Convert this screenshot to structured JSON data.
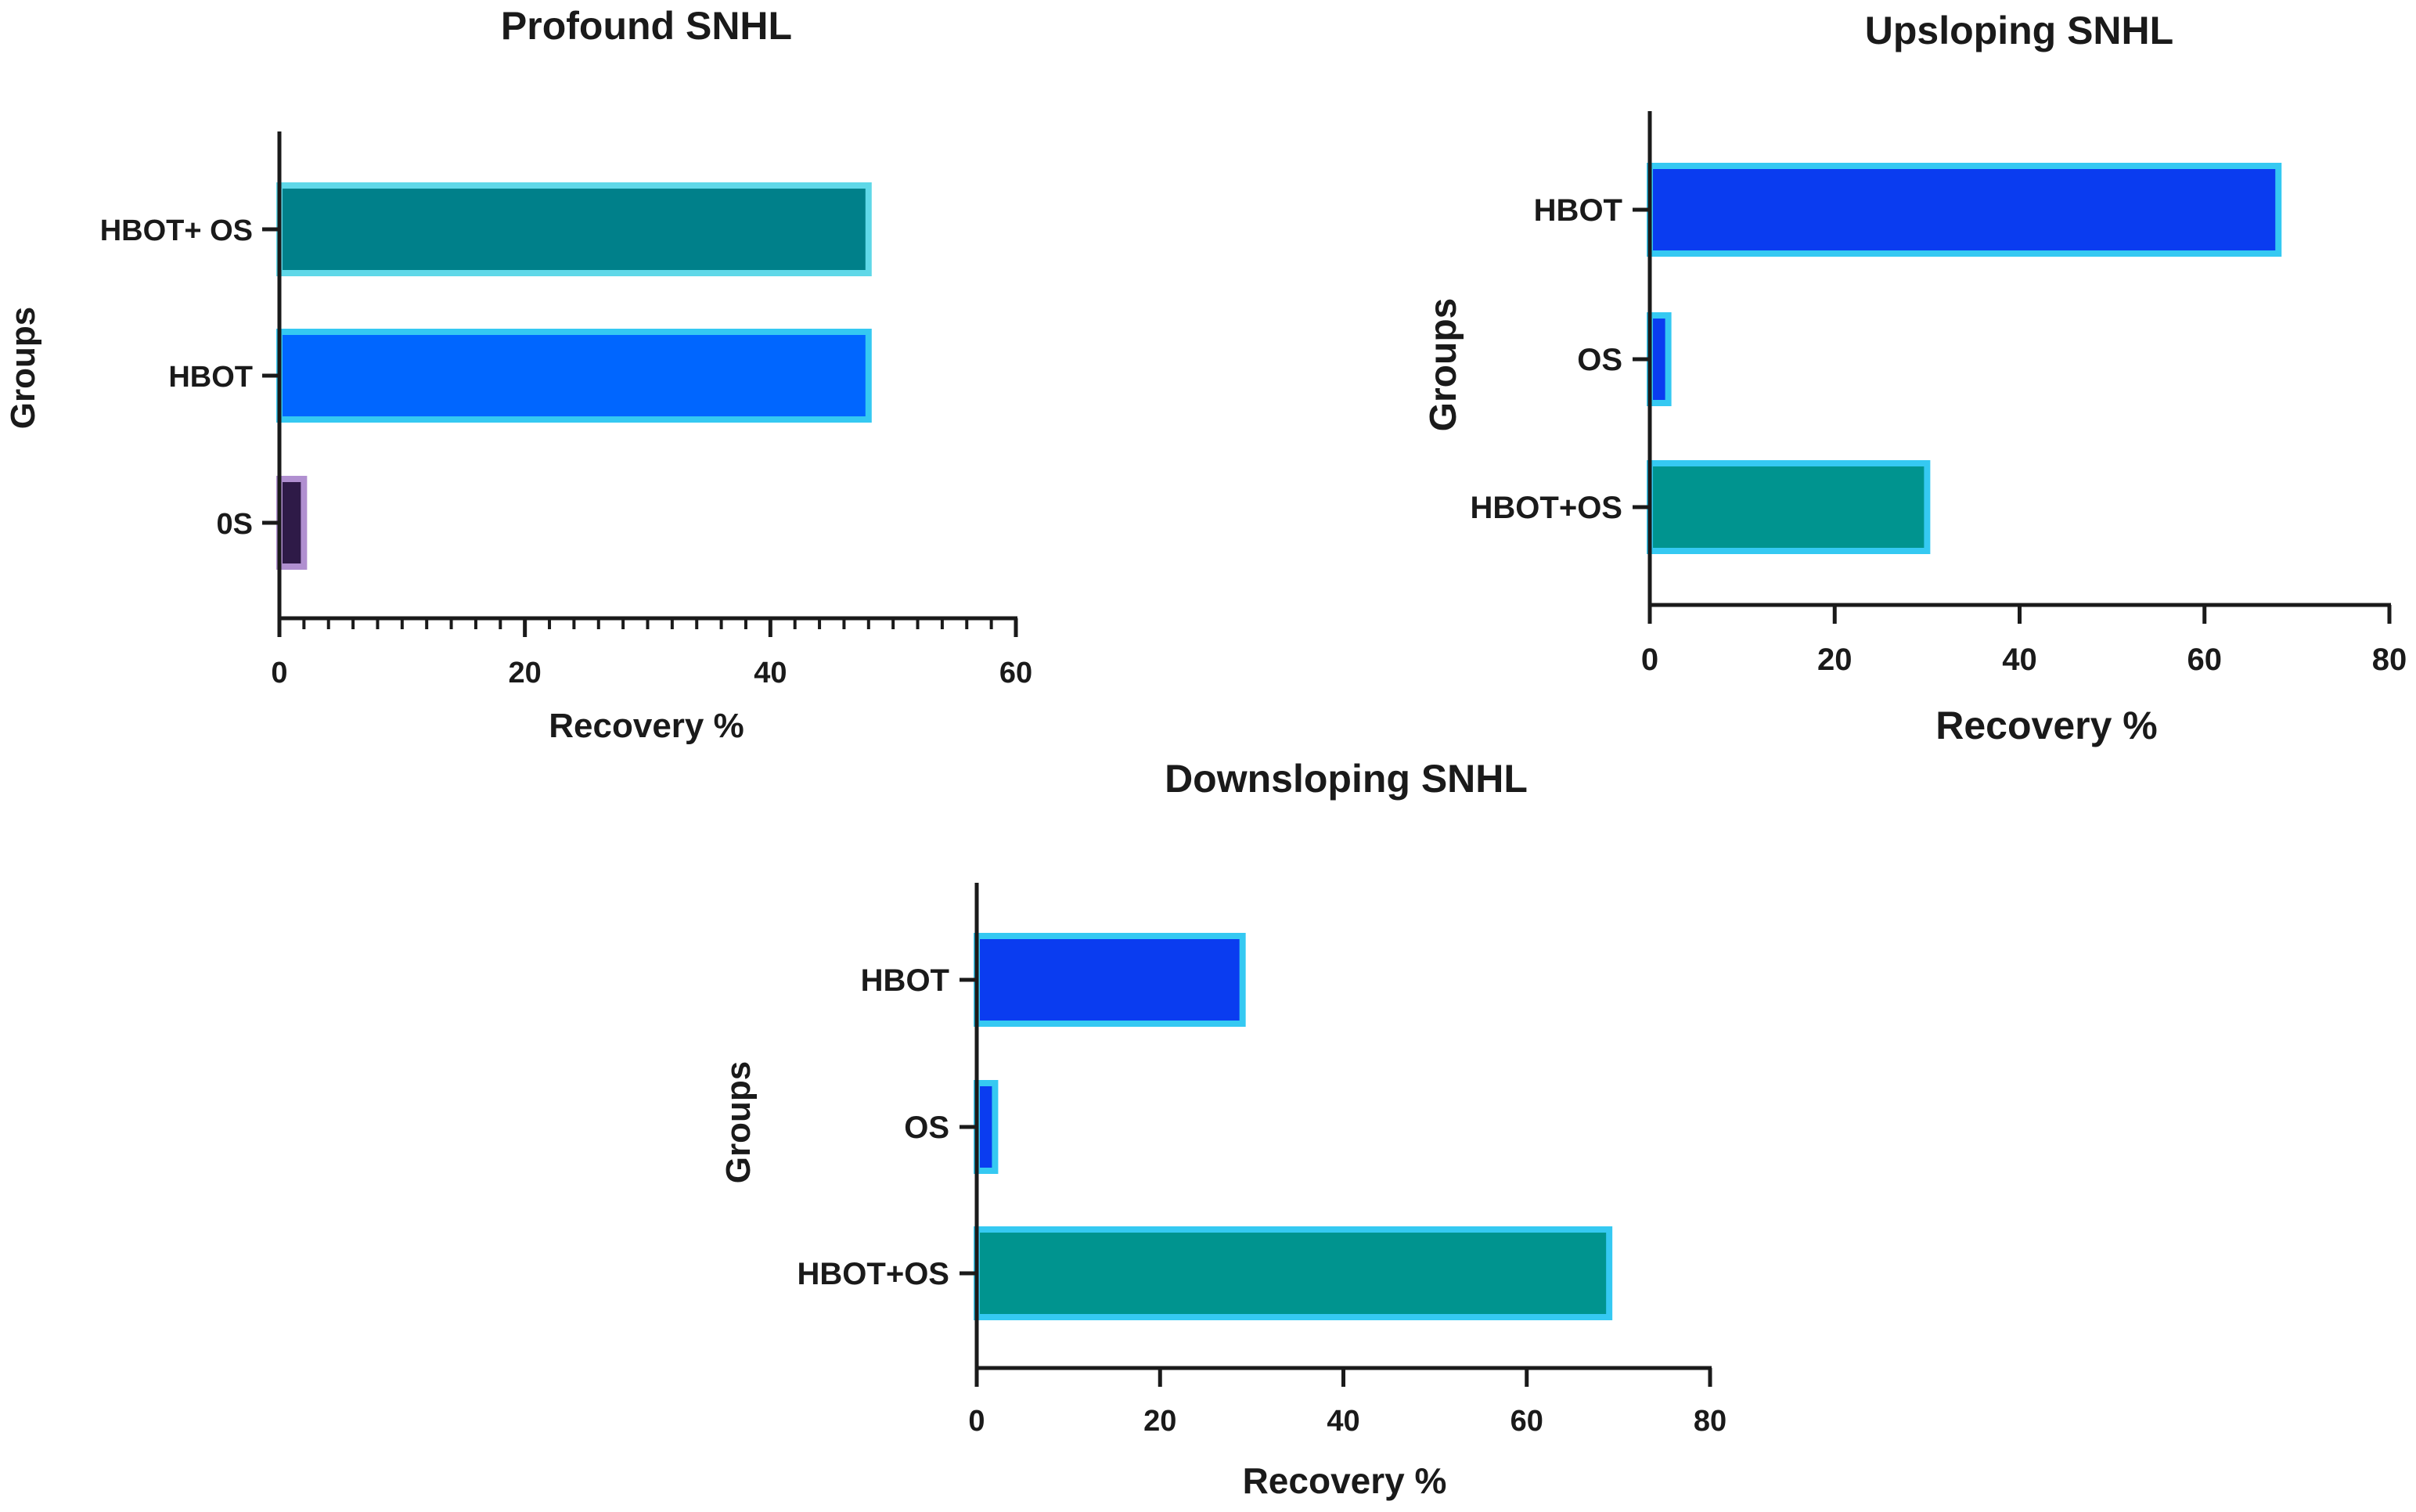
{
  "chart_data": [
    {
      "type": "bar",
      "orientation": "horizontal",
      "title": "Profound SNHL",
      "xlabel": "Recovery %",
      "ylabel": "Groups",
      "xlim": [
        0,
        60
      ],
      "xticks": [
        "0",
        "20",
        "40",
        "60"
      ],
      "minor_ticks": true,
      "categories": [
        "HBOT+ OS",
        "HBOT",
        "0S"
      ],
      "values": [
        48,
        48,
        2
      ],
      "fills": [
        "#00808a",
        "#0066ff",
        "#2e1a47"
      ],
      "strokes": [
        "#5fd8e8",
        "#35c9f2",
        "#b08fd0"
      ]
    },
    {
      "type": "bar",
      "orientation": "horizontal",
      "title": "Upsloping SNHL",
      "xlabel": "Recovery %",
      "ylabel": "Groups",
      "xlim": [
        0,
        80
      ],
      "xticks": [
        "0",
        "20",
        "40",
        "60",
        "80"
      ],
      "minor_ticks": false,
      "categories": [
        "HBOT",
        "OS",
        "HBOT+OS"
      ],
      "values": [
        68,
        2,
        30
      ],
      "fills": [
        "#0a3cf0",
        "#0a3cf0",
        "#00948f"
      ],
      "strokes": [
        "#35c9f2",
        "#35c9f2",
        "#35c9f2"
      ]
    },
    {
      "type": "bar",
      "orientation": "horizontal",
      "title": "Downsloping SNHL",
      "xlabel": "Recovery %",
      "ylabel": "Groups",
      "xlim": [
        0,
        80
      ],
      "xticks": [
        "0",
        "20",
        "40",
        "60",
        "80"
      ],
      "minor_ticks": false,
      "categories": [
        "HBOT",
        "OS",
        "HBOT+OS"
      ],
      "values": [
        29,
        2,
        69
      ],
      "fills": [
        "#0a3cf0",
        "#0a3cf0",
        "#00948f"
      ],
      "strokes": [
        "#35c9f2",
        "#35c9f2",
        "#35c9f2"
      ]
    }
  ]
}
